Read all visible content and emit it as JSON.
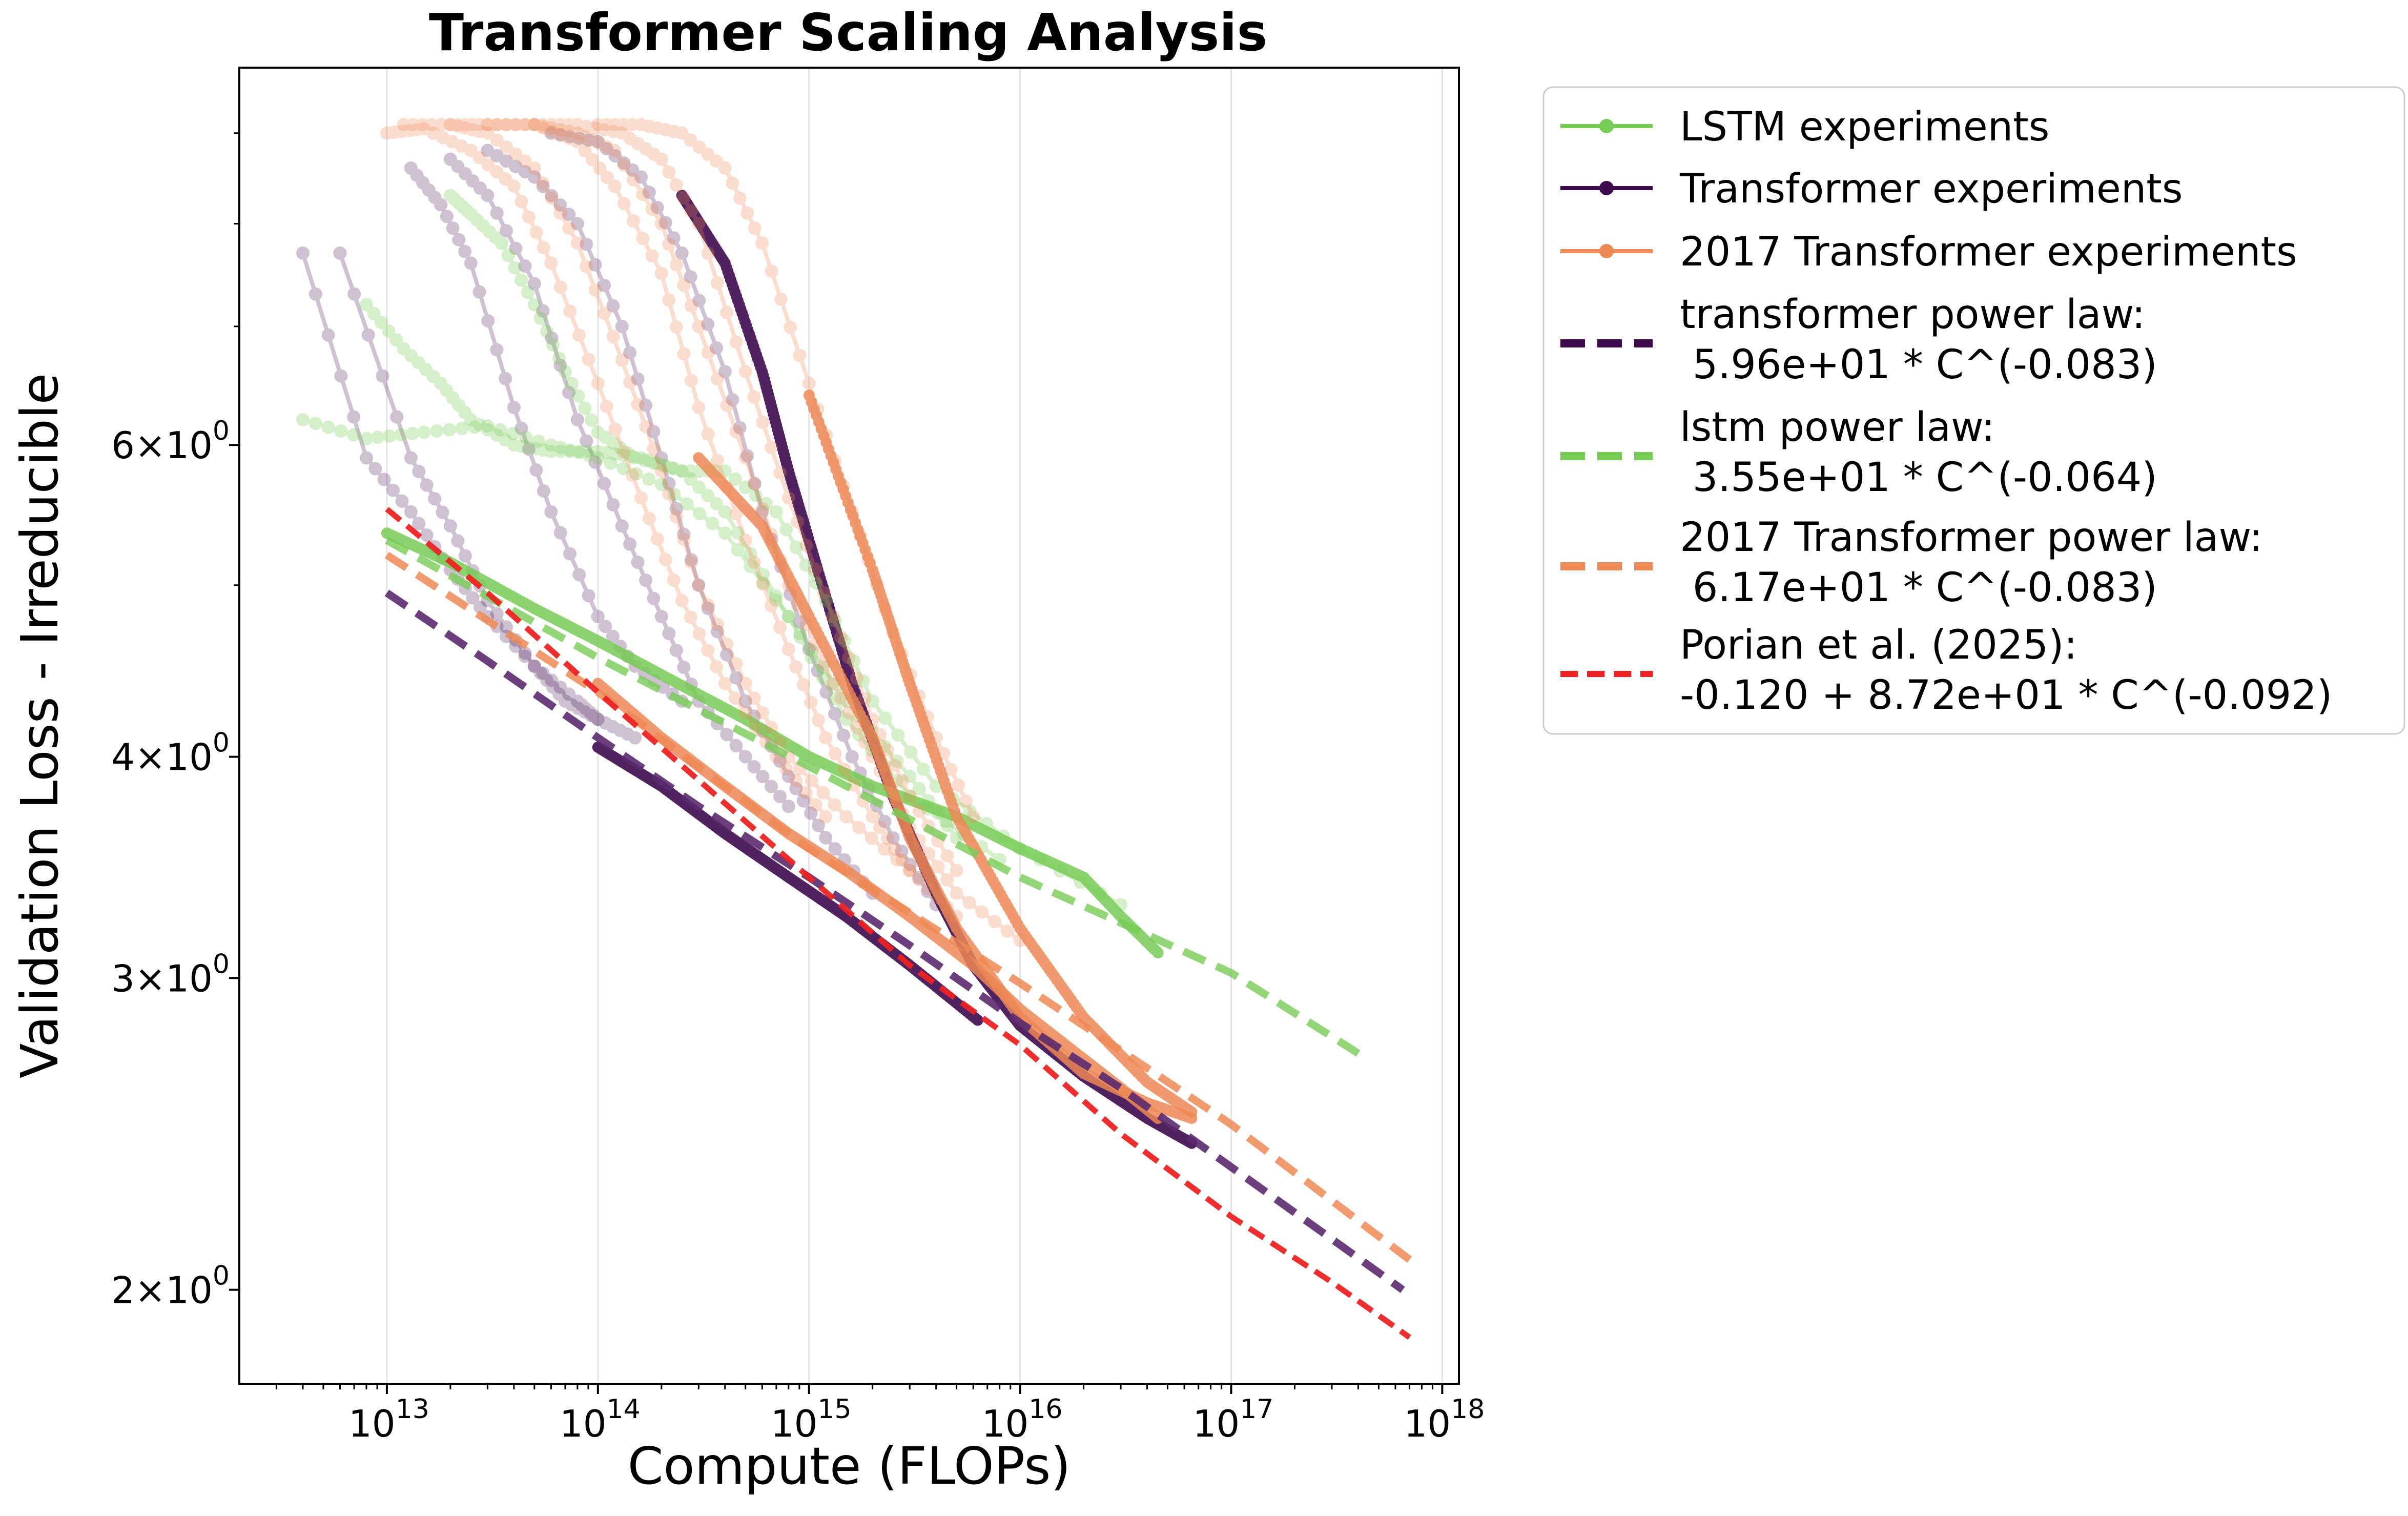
{
  "chart_data": {
    "type": "line",
    "title": "Transformer Scaling Analysis",
    "xlabel": "Compute (FLOPs)",
    "ylabel": "Validation Loss - Irreducible",
    "x_scale": "log",
    "y_scale": "log",
    "xlim": [
      2000000000000.0,
      1.2e+18
    ],
    "ylim": [
      1.77,
      9.8
    ],
    "x_ticks": [
      {
        "value": 10000000000000.0,
        "base": "10",
        "exp": "13"
      },
      {
        "value": 100000000000000.0,
        "base": "10",
        "exp": "14"
      },
      {
        "value": 1000000000000000.0,
        "base": "10",
        "exp": "15"
      },
      {
        "value": 1e+16,
        "base": "10",
        "exp": "16"
      },
      {
        "value": 1e+17,
        "base": "10",
        "exp": "17"
      },
      {
        "value": 1e+18,
        "base": "10",
        "exp": "18"
      }
    ],
    "y_ticks": [
      {
        "value": 2,
        "mant": "2",
        "base": "10",
        "exp": "0"
      },
      {
        "value": 3,
        "mant": "3",
        "base": "10",
        "exp": "0"
      },
      {
        "value": 4,
        "mant": "4",
        "base": "10",
        "exp": "0"
      },
      {
        "value": 6,
        "mant": "6",
        "base": "10",
        "exp": "0"
      }
    ],
    "grid": "x-major",
    "legend_position": "outside-right",
    "colors": {
      "lstm": "#77cc55",
      "transformer": "#3f0b4f",
      "t2017": "#ee8855",
      "porian": "#ee2222"
    },
    "legend": [
      {
        "label": "LSTM experiments",
        "style": "marker-line",
        "color": "#77cc55"
      },
      {
        "label": "Transformer experiments",
        "style": "marker-line",
        "color": "#3f0b4f"
      },
      {
        "label": "2017 Transformer experiments",
        "style": "marker-line",
        "color": "#ee8855"
      },
      {
        "label": "transformer power law:",
        "label2": " 5.96e+01 * C^(-0.083)",
        "style": "dashed",
        "color": "#3f0b4f"
      },
      {
        "label": "lstm power law:",
        "label2": " 3.55e+01 * C^(-0.064)",
        "style": "dashed",
        "color": "#77cc55"
      },
      {
        "label": "2017 Transformer power law:",
        "label2": " 6.17e+01 * C^(-0.083)",
        "style": "dashed",
        "color": "#ee8855"
      },
      {
        "label": "Porian et al. (2025):",
        "label2": "-0.120 + 8.72e+01 * C^(-0.092)",
        "style": "dashed-thin",
        "color": "#ee2222"
      }
    ],
    "fits": [
      {
        "name": "transformer power law",
        "color": "#5a2a6e",
        "opacity": 0.9,
        "x": [
          10000000000000.0,
          30000000000000.0,
          100000000000000.0,
          300000000000000.0,
          1000000000000000.0,
          3000000000000000.0,
          1e+16,
          3e+16,
          6.5e+17
        ],
        "y": [
          4.95,
          4.53,
          4.1,
          3.75,
          3.42,
          3.13,
          2.83,
          2.6,
          2.0
        ]
      },
      {
        "name": "lstm power law",
        "color": "#77cc55",
        "opacity": 0.8,
        "x": [
          10000000000000.0,
          100000000000000.0,
          1000000000000000.0,
          1e+16,
          1e+17,
          4e+17
        ],
        "y": [
          5.3,
          4.55,
          3.95,
          3.42,
          3.02,
          2.72
        ]
      },
      {
        "name": "2017 Transformer power law",
        "color": "#ee8855",
        "opacity": 0.85,
        "x": [
          10000000000000.0,
          100000000000000.0,
          1000000000000000.0,
          1e+16,
          1e+17,
          7e+17
        ],
        "y": [
          5.2,
          4.35,
          3.55,
          2.98,
          2.48,
          2.08
        ]
      },
      {
        "name": "Porian et al. (2025)",
        "color": "#ee2222",
        "opacity": 0.95,
        "x": [
          10000000000000.0,
          30000000000000.0,
          100000000000000.0,
          300000000000000.0,
          1000000000000000.0,
          3000000000000000.0,
          1e+16,
          3e+16,
          1e+17,
          3e+17,
          7e+17
        ],
        "y": [
          5.52,
          4.95,
          4.35,
          3.88,
          3.42,
          3.05,
          2.75,
          2.45,
          2.2,
          2.02,
          1.88
        ]
      }
    ],
    "series": [
      {
        "name": "Transformer experiments",
        "kind": "transformer",
        "alpha": 0.25,
        "x": [
          4000000000000.0,
          8000000000000.0,
          13000000000000.0,
          20000000000000.0,
          30000000000000.0,
          50000000000000.0,
          80000000000000.0,
          100000000000000.0
        ],
        "y": [
          7.7,
          5.9,
          5.5,
          5.1,
          4.8,
          4.5,
          4.3,
          4.2
        ]
      },
      {
        "name": "Transformer experiments",
        "kind": "transformer",
        "alpha": 0.25,
        "x": [
          6000000000000.0,
          13000000000000.0,
          20000000000000.0,
          30000000000000.0,
          50000000000000.0,
          70000000000000.0,
          100000000000000.0,
          150000000000000.0
        ],
        "y": [
          7.7,
          5.9,
          5.4,
          4.9,
          4.5,
          4.3,
          4.2,
          4.1
        ]
      },
      {
        "name": "Transformer experiments",
        "kind": "transformer",
        "alpha": 0.25,
        "x": [
          13000000000000.0,
          18000000000000.0,
          25000000000000.0,
          40000000000000.0,
          60000000000000.0,
          100000000000000.0,
          150000000000000.0,
          250000000000000.0
        ],
        "y": [
          8.6,
          8.2,
          7.6,
          6.3,
          5.5,
          4.8,
          4.5,
          4.3
        ]
      },
      {
        "name": "Transformer experiments",
        "kind": "transformer",
        "alpha": 0.25,
        "x": [
          20000000000000.0,
          30000000000000.0,
          50000000000000.0,
          80000000000000.0,
          130000000000000.0,
          200000000000000.0,
          300000000000000.0,
          500000000000000.0,
          800000000000000.0
        ],
        "y": [
          8.7,
          8.3,
          7.4,
          6.2,
          5.4,
          4.8,
          4.3,
          4.0,
          3.75
        ]
      },
      {
        "name": "Transformer experiments",
        "kind": "transformer",
        "alpha": 0.25,
        "x": [
          30000000000000.0,
          50000000000000.0,
          80000000000000.0,
          130000000000000.0,
          200000000000000.0,
          300000000000000.0,
          500000000000000.0,
          800000000000000.0,
          1200000000000000.0,
          2000000000000000.0
        ],
        "y": [
          8.8,
          8.5,
          8.0,
          7.0,
          5.9,
          5.0,
          4.3,
          3.9,
          3.6,
          3.35
        ]
      },
      {
        "name": "Transformer experiments",
        "kind": "transformer",
        "alpha": 0.25,
        "x": [
          60000000000000.0,
          100000000000000.0,
          160000000000000.0,
          250000000000000.0,
          400000000000000.0,
          600000000000000.0,
          1000000000000000.0,
          1600000000000000.0,
          2500000000000000.0,
          4000000000000000.0
        ],
        "y": [
          9.0,
          8.9,
          8.5,
          7.7,
          6.6,
          5.5,
          4.6,
          4.0,
          3.6,
          3.3
        ]
      },
      {
        "name": "Transformer experiments",
        "kind": "transformer",
        "alpha": 0.9,
        "x": [
          100000000000000.0,
          200000000000000.0,
          400000000000000.0,
          800000000000000.0,
          1500000000000000.0,
          3000000000000000.0,
          6300000000000000.0
        ],
        "y": [
          4.05,
          3.85,
          3.62,
          3.42,
          3.25,
          3.05,
          2.84
        ]
      },
      {
        "name": "Transformer experiments",
        "kind": "transformer",
        "alpha": 0.9,
        "x": [
          250000000000000.0,
          400000000000000.0,
          600000000000000.0,
          800000000000000.0,
          1100000000000000.0,
          1600000000000000.0,
          2500000000000000.0,
          4000000000000000.0,
          6000000000000000.0,
          1e+16,
          2e+16,
          4e+16,
          6.5e+16
        ],
        "y": [
          8.3,
          7.6,
          6.6,
          5.8,
          5.1,
          4.4,
          3.8,
          3.35,
          3.05,
          2.82,
          2.64,
          2.5,
          2.42
        ]
      },
      {
        "name": "LSTM experiments",
        "kind": "lstm",
        "alpha": 0.3,
        "x": [
          4000000000000.0,
          8000000000000.0,
          15000000000000.0,
          30000000000000.0,
          60000000000000.0,
          100000000000000.0,
          200000000000000.0,
          400000000000000.0,
          800000000000000.0,
          1500000000000000.0,
          3000000000000000.0,
          5000000000000000.0
        ],
        "y": [
          6.2,
          6.05,
          6.1,
          6.15,
          6.0,
          5.9,
          5.7,
          5.35,
          4.8,
          4.3,
          3.9,
          3.6
        ]
      },
      {
        "name": "LSTM experiments",
        "kind": "lstm",
        "alpha": 0.3,
        "x": [
          8000000000000.0,
          12000000000000.0,
          18000000000000.0,
          25000000000000.0,
          40000000000000.0,
          60000000000000.0,
          100000000000000.0,
          160000000000000.0,
          250000000000000.0,
          400000000000000.0,
          800000000000000.0,
          1500000000000000.0,
          3000000000000000.0,
          8000000000000000.0
        ],
        "y": [
          7.2,
          6.8,
          6.5,
          6.2,
          6.0,
          5.95,
          5.95,
          5.9,
          5.8,
          5.5,
          4.8,
          4.2,
          3.8,
          3.5
        ]
      },
      {
        "name": "LSTM experiments",
        "kind": "lstm",
        "alpha": 0.3,
        "x": [
          20000000000000.0,
          25000000000000.0,
          35000000000000.0,
          50000000000000.0,
          70000000000000.0,
          100000000000000.0,
          150000000000000.0,
          250000000000000.0,
          400000000000000.0,
          700000000000000.0,
          1200000000000000.0,
          2000000000000000.0,
          4000000000000000.0,
          1e+16,
          3e+16
        ],
        "y": [
          8.3,
          8.1,
          7.8,
          7.2,
          6.6,
          6.1,
          5.9,
          5.8,
          5.8,
          5.5,
          4.9,
          4.3,
          3.85,
          3.55,
          3.3
        ]
      },
      {
        "name": "LSTM experiments",
        "kind": "lstm",
        "alpha": 0.85,
        "x": [
          10000000000000.0,
          20000000000000.0,
          50000000000000.0,
          100000000000000.0,
          200000000000000.0,
          500000000000000.0,
          1000000000000000.0,
          2000000000000000.0,
          5000000000000000.0,
          1e+16,
          2e+16,
          3e+16,
          4.5e+16
        ],
        "y": [
          5.35,
          5.15,
          4.85,
          4.65,
          4.45,
          4.2,
          4.0,
          3.85,
          3.7,
          3.55,
          3.42,
          3.25,
          3.1
        ]
      },
      {
        "name": "2017 Transformer experiments",
        "kind": "t2017",
        "alpha": 0.28,
        "x": [
          10000000000000.0,
          15000000000000.0,
          25000000000000.0,
          40000000000000.0,
          60000000000000.0,
          100000000000000.0,
          160000000000000.0,
          250000000000000.0,
          400000000000000.0,
          700000000000000.0,
          1200000000000000.0
        ],
        "y": [
          9.0,
          9.05,
          8.8,
          8.4,
          7.6,
          6.5,
          5.6,
          4.9,
          4.4,
          4.0,
          3.7
        ]
      },
      {
        "name": "2017 Transformer experiments",
        "kind": "t2017",
        "alpha": 0.28,
        "x": [
          12000000000000.0,
          20000000000000.0,
          30000000000000.0,
          50000000000000.0,
          80000000000000.0,
          130000000000000.0,
          200000000000000.0,
          300000000000000.0,
          500000000000000.0,
          800000000000000.0,
          1500000000000000.0,
          3000000000000000.0
        ],
        "y": [
          9.1,
          9.1,
          9.0,
          8.6,
          7.8,
          6.7,
          5.8,
          5.0,
          4.4,
          4.0,
          3.7,
          3.45
        ]
      },
      {
        "name": "2017 Transformer experiments",
        "kind": "t2017",
        "alpha": 0.28,
        "x": [
          20000000000000.0,
          30000000000000.0,
          50000000000000.0,
          80000000000000.0,
          120000000000000.0,
          200000000000000.0,
          300000000000000.0,
          500000000000000.0,
          800000000000000.0,
          1200000000000000.0,
          2000000000000000.0,
          3000000000000000.0,
          5000000000000000.0
        ],
        "y": [
          9.1,
          9.1,
          9.1,
          8.9,
          8.4,
          7.5,
          6.3,
          5.3,
          4.6,
          4.1,
          3.7,
          3.45,
          3.25
        ]
      },
      {
        "name": "2017 Transformer experiments",
        "kind": "t2017",
        "alpha": 0.28,
        "x": [
          30000000000000.0,
          50000000000000.0,
          80000000000000.0,
          120000000000000.0,
          200000000000000.0,
          300000000000000.0,
          500000000000000.0,
          800000000000000.0,
          1300000000000000.0,
          2000000000000000.0,
          3000000000000000.0,
          5000000000000000.0,
          1e+16
        ],
        "y": [
          9.1,
          9.1,
          9.0,
          8.8,
          8.0,
          7.0,
          5.9,
          5.0,
          4.4,
          4.0,
          3.65,
          3.35,
          3.15
        ]
      },
      {
        "name": "2017 Transformer experiments",
        "kind": "t2017",
        "alpha": 0.28,
        "x": [
          50000000000000.0,
          80000000000000.0,
          130000000000000.0,
          200000000000000.0,
          300000000000000.0,
          500000000000000.0,
          800000000000000.0,
          1300000000000000.0,
          2000000000000000.0,
          3000000000000000.0,
          5000000000000000.0
        ],
        "y": [
          9.1,
          9.1,
          9.0,
          8.7,
          8.0,
          6.6,
          5.6,
          4.8,
          4.2,
          3.8,
          3.45
        ]
      },
      {
        "name": "2017 Transformer experiments",
        "kind": "t2017",
        "alpha": 0.28,
        "x": [
          100000000000000.0,
          160000000000000.0,
          250000000000000.0,
          400000000000000.0,
          600000000000000.0,
          1000000000000000.0,
          1600000000000000.0,
          2500000000000000.0,
          4000000000000000.0,
          6000000000000000.0
        ],
        "y": [
          9.1,
          9.1,
          9.0,
          8.6,
          7.8,
          6.5,
          5.5,
          4.7,
          4.1,
          3.7
        ]
      },
      {
        "name": "2017 Transformer experiments",
        "kind": "t2017",
        "alpha": 0.85,
        "x": [
          300000000000000.0,
          600000000000000.0,
          1000000000000000.0,
          2000000000000000.0,
          3000000000000000.0,
          5000000000000000.0,
          1e+16,
          2e+16,
          4e+16,
          6.5e+16
        ],
        "y": [
          5.9,
          5.4,
          4.8,
          4.1,
          3.6,
          3.2,
          2.85,
          2.65,
          2.55,
          2.5
        ]
      },
      {
        "name": "2017 Transformer experiments",
        "kind": "t2017",
        "alpha": 0.85,
        "x": [
          100000000000000.0,
          200000000000000.0,
          400000000000000.0,
          800000000000000.0,
          1500000000000000.0,
          3000000000000000.0,
          6000000000000000.0,
          1e+16,
          2e+16,
          3e+16,
          4.5e+16
        ],
        "y": [
          4.4,
          4.1,
          3.85,
          3.62,
          3.45,
          3.25,
          3.05,
          2.88,
          2.7,
          2.6,
          2.5
        ]
      },
      {
        "name": "2017 Transformer experiments",
        "kind": "t2017",
        "alpha": 0.85,
        "x": [
          1000000000000000.0,
          2000000000000000.0,
          3000000000000000.0,
          5000000000000000.0,
          1e+16,
          2e+16,
          4e+16,
          6.5e+16
        ],
        "y": [
          6.4,
          5.1,
          4.4,
          3.7,
          3.2,
          2.85,
          2.62,
          2.52
        ]
      }
    ]
  }
}
